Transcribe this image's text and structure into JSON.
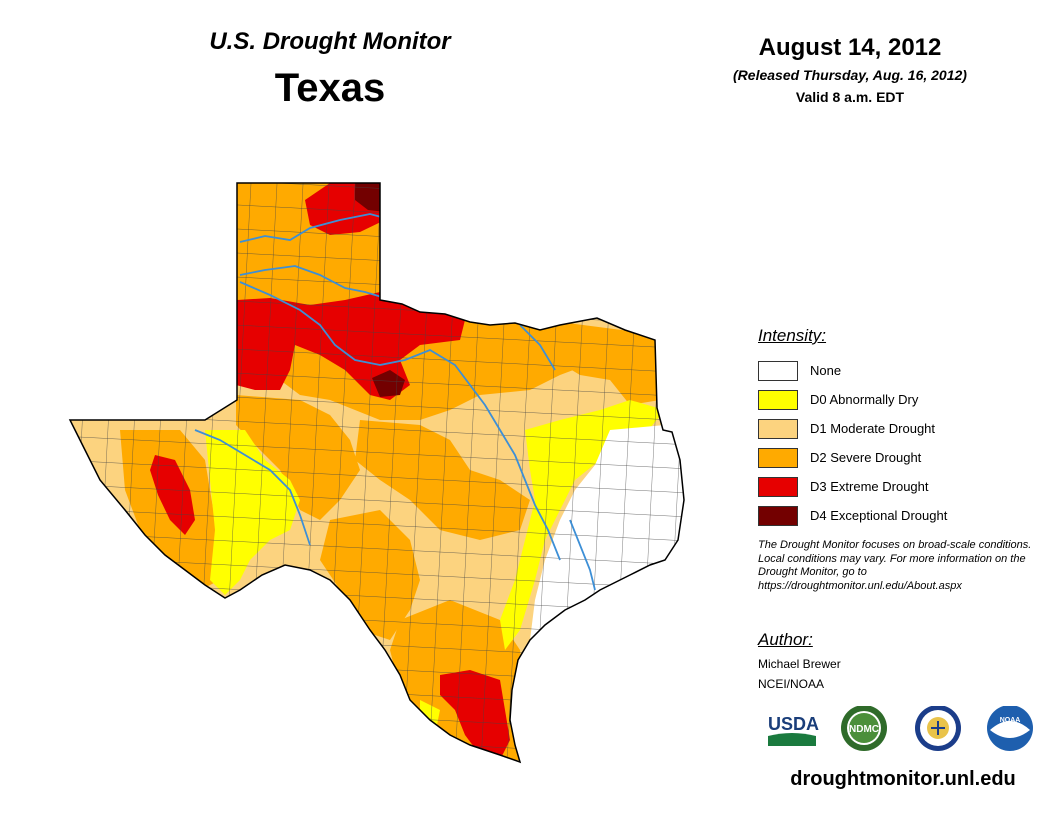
{
  "header": {
    "title": "U.S. Drought Monitor",
    "state": "Texas",
    "date": "August 14, 2012",
    "released": "(Released Thursday, Aug. 16, 2012)",
    "valid": "Valid 8 a.m. EDT"
  },
  "legend": {
    "heading": "Intensity:",
    "items": [
      {
        "label": "None",
        "color": "#ffffff"
      },
      {
        "label": "D0 Abnormally Dry",
        "color": "#ffff00"
      },
      {
        "label": "D1 Moderate Drought",
        "color": "#fcd37f"
      },
      {
        "label": "D2 Severe Drought",
        "color": "#ffaa00"
      },
      {
        "label": "D3 Extreme Drought",
        "color": "#e60000"
      },
      {
        "label": "D4 Exceptional Drought",
        "color": "#730000"
      }
    ]
  },
  "note": "The Drought Monitor focuses on broad-scale conditions. Local conditions may vary. For more information on the Drought Monitor, go to https://droughtmonitor.unl.edu/About.aspx",
  "author": {
    "heading": "Author:",
    "name": "Michael Brewer",
    "org": "NCEI/NOAA"
  },
  "logos": {
    "usda": "USDA",
    "ndmc": "NDMC",
    "noaa": "NOAA"
  },
  "website": "droughtmonitor.unl.edu",
  "colors": {
    "river": "#3d8fd6",
    "county_line": "#444444",
    "state_border": "#000000"
  }
}
